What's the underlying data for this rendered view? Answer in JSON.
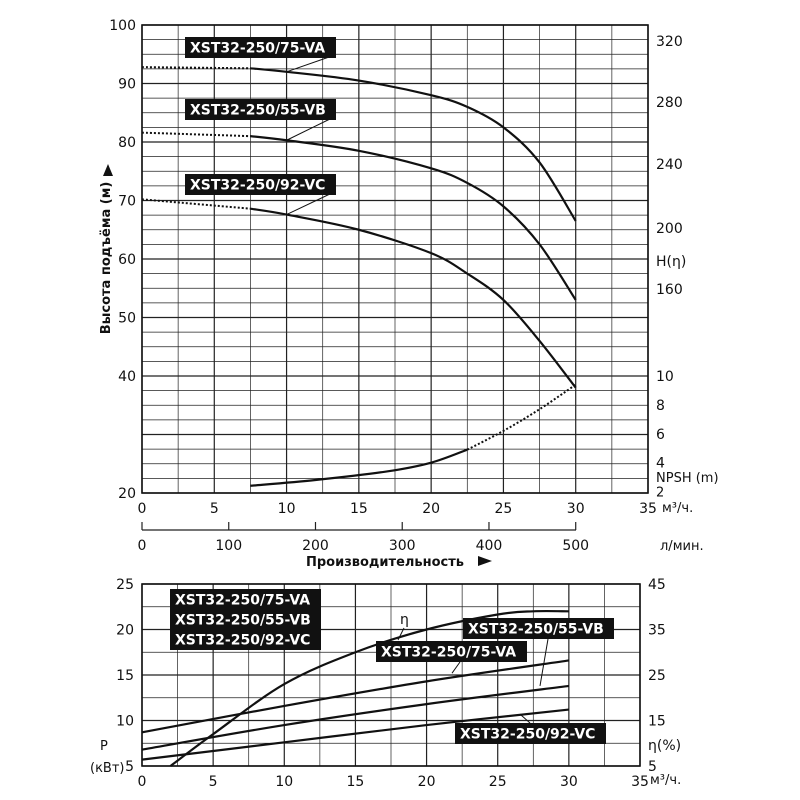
{
  "chart_data": [
    {
      "type": "line",
      "xlabel": "Производительность",
      "ylabel": "Высота подъёма (м)",
      "x_unit": "м³/ч.",
      "x2_unit": "л/мин.",
      "xlim": [
        0,
        35
      ],
      "ylim": [
        20,
        100
      ],
      "x_ticks": [
        0,
        5,
        10,
        15,
        20,
        25,
        30,
        35
      ],
      "x2_ticks": [
        0,
        100,
        200,
        300,
        400,
        500
      ],
      "y_ticks": [
        20,
        40,
        50,
        60,
        70,
        80,
        90,
        100
      ],
      "right_axis_label": "H(η)",
      "right_axis_ticks": [
        160,
        200,
        240,
        280,
        320
      ],
      "npsh_label": "NPSH (m)",
      "npsh_ticks": [
        2,
        4,
        6,
        8,
        10
      ],
      "grid": true,
      "series": [
        {
          "name": "XST32-250/75-VA",
          "x": [
            0,
            7.5,
            10,
            15,
            20,
            22.5,
            25,
            27.5,
            30
          ],
          "y": [
            92.8,
            92.6,
            92,
            90.5,
            88,
            86,
            82.5,
            76.5,
            66.5
          ],
          "dotted_until": 7.5
        },
        {
          "name": "XST32-250/55-VB",
          "x": [
            0,
            7.5,
            10,
            15,
            20,
            22.5,
            25,
            27.5,
            30
          ],
          "y": [
            81.6,
            81,
            80.3,
            78.5,
            75.5,
            73,
            69,
            62.5,
            53
          ],
          "dotted_until": 7.5
        },
        {
          "name": "XST32-250/92-VC",
          "x": [
            0,
            7.5,
            10,
            15,
            20,
            22.5,
            25,
            27.5,
            30
          ],
          "y": [
            70.2,
            68.6,
            67.6,
            65,
            61,
            57.5,
            53,
            46,
            38
          ],
          "dotted_until": 7.5
        },
        {
          "name": "NPSH (m)",
          "x": [
            7.5,
            12,
            17,
            20,
            22.5,
            25,
            27.5,
            30
          ],
          "y": [
            2.4,
            2.8,
            3.4,
            4.0,
            4.9,
            6.2,
            7.7,
            9.4
          ],
          "dotted_from": 22
        }
      ],
      "labels": [
        "XST32-250/75-VA",
        "XST32-250/55-VB",
        "XST32-250/92-VC"
      ]
    },
    {
      "type": "line",
      "ylabel": "P",
      "y_unit": "(кВт)",
      "right_axis_label": "η(%)",
      "x_unit": "м³/ч.",
      "xlim": [
        0,
        35
      ],
      "ylim": [
        5,
        25
      ],
      "x_ticks": [
        0,
        5,
        10,
        15,
        20,
        25,
        30,
        35
      ],
      "y_ticks": [
        5,
        10,
        15,
        20,
        25
      ],
      "y2lim": [
        5,
        45
      ],
      "y2_ticks": [
        5,
        15,
        25,
        35,
        45
      ],
      "grid": true,
      "series": [
        {
          "name": "η",
          "axis": "right",
          "x": [
            2,
            5,
            10,
            15,
            20,
            25,
            27.5,
            30
          ],
          "y": [
            5,
            12,
            23,
            30,
            35,
            38.3,
            39,
            39
          ]
        },
        {
          "name": "XST32-250/75-VA",
          "x": [
            0,
            10,
            20,
            30
          ],
          "y": [
            8.7,
            11.6,
            14.3,
            16.6
          ]
        },
        {
          "name": "XST32-250/55-VB",
          "x": [
            0,
            10,
            20,
            30
          ],
          "y": [
            6.8,
            9.5,
            11.8,
            13.8
          ]
        },
        {
          "name": "XST32-250/92-VC",
          "x": [
            0,
            10,
            20,
            30
          ],
          "y": [
            5.7,
            7.6,
            9.5,
            11.2
          ]
        }
      ],
      "eta_label": "η",
      "labels": [
        "XST32-250/75-VA",
        "XST32-250/55-VB",
        "XST32-250/92-VC",
        "XST32-250/55-VB",
        "XST32-250/75-VA",
        "XST32-250/92-VC"
      ]
    }
  ]
}
